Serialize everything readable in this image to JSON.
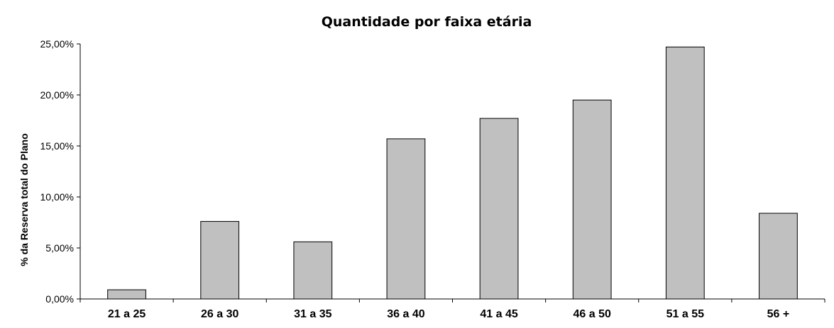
{
  "chart_data": {
    "type": "bar",
    "title": "Quantidade por faixa etária",
    "xlabel": "",
    "ylabel": "% da Reserva total do Plano",
    "categories": [
      "21 a 25",
      "26 a 30",
      "31 a 35",
      "36 a 40",
      "41 a 45",
      "46 a 50",
      "51 a 55",
      "56 +"
    ],
    "values": [
      0.9,
      7.6,
      5.6,
      15.7,
      17.7,
      19.5,
      24.7,
      8.4
    ],
    "ylim": [
      0,
      25
    ],
    "yticks": [
      0,
      5,
      10,
      15,
      20,
      25
    ],
    "ytick_labels": [
      "0,00%",
      "5,00%",
      "10,00%",
      "15,00%",
      "20,00%",
      "25,00%"
    ],
    "grid": false,
    "legend": "none",
    "colors": {
      "bar_fill": "#c0c0c0",
      "bar_stroke": "#000000"
    }
  }
}
